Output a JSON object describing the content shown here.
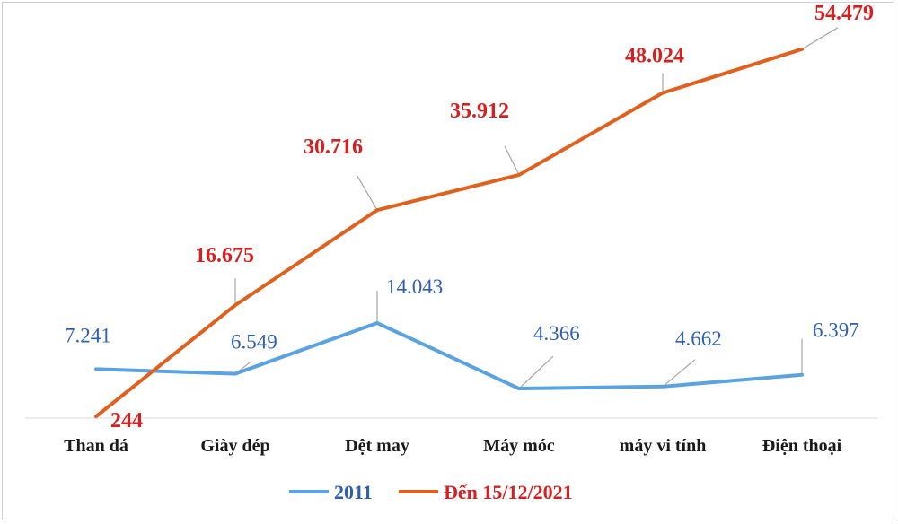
{
  "chart_data": {
    "type": "line",
    "categories": [
      "Than đá",
      "Giày dép",
      "Dệt may",
      "Máy móc",
      "máy vi tính",
      "Điện thoại"
    ],
    "series": [
      {
        "name": "2011",
        "color": "#5ba3e0",
        "label_color": "#2f5fb3",
        "values": [
          7241,
          6549,
          14043,
          4366,
          4662,
          6397
        ],
        "labels": [
          "7.241",
          "6.549",
          "14.043",
          "4.366",
          "4.662",
          "6.397"
        ]
      },
      {
        "name": "Đến 15/12/2021",
        "color": "#e0601e",
        "label_color": "#d42020",
        "values": [
          244,
          16675,
          30716,
          35912,
          48024,
          54479
        ],
        "labels": [
          "244",
          "16.675",
          "30.716",
          "35.912",
          "48.024",
          "54.479"
        ]
      }
    ],
    "ylim": [
      0,
      57500
    ],
    "grid": false,
    "legend": "bottom",
    "title": "",
    "xlabel": "",
    "ylabel": ""
  }
}
